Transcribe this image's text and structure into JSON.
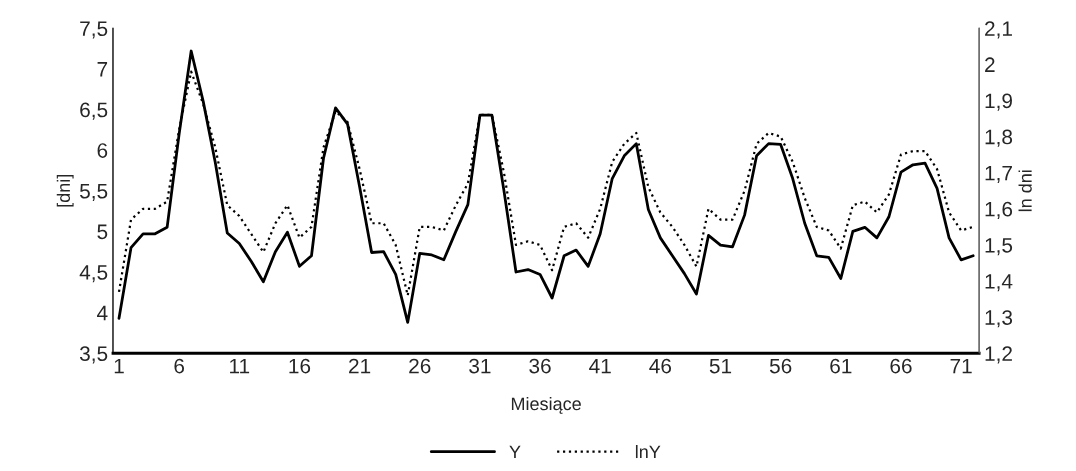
{
  "chart_data": {
    "type": "line",
    "xlabel": "Miesiące",
    "ylabel": "[dni]",
    "y2label": "ln dni",
    "x": [
      1,
      2,
      3,
      4,
      5,
      6,
      7,
      8,
      9,
      10,
      11,
      12,
      13,
      14,
      15,
      16,
      17,
      18,
      19,
      20,
      21,
      22,
      23,
      24,
      25,
      26,
      27,
      28,
      29,
      30,
      31,
      32,
      33,
      34,
      35,
      36,
      37,
      38,
      39,
      40,
      41,
      42,
      43,
      44,
      45,
      46,
      47,
      48,
      49,
      50,
      51,
      52,
      53,
      54,
      55,
      56,
      57,
      58,
      59,
      60,
      61,
      62,
      63,
      64,
      65,
      66,
      67,
      68,
      69,
      70,
      71,
      72
    ],
    "xlim": [
      0.5,
      72.5
    ],
    "xticks": [
      1,
      6,
      11,
      16,
      21,
      26,
      31,
      36,
      41,
      46,
      51,
      56,
      61,
      66,
      71
    ],
    "ylim": [
      3.5,
      7.5
    ],
    "yticks": [
      {
        "value": 3.5,
        "label": "3,5"
      },
      4,
      {
        "value": 4.5,
        "label": "4,5"
      },
      5,
      {
        "value": 5.5,
        "label": "5,5"
      },
      6,
      {
        "value": 6.5,
        "label": "6,5"
      },
      7,
      {
        "value": 7.5,
        "label": "7,5"
      }
    ],
    "y2lim": [
      1.2,
      2.1
    ],
    "y2ticks": [
      {
        "value": 1.2,
        "label": "1,2"
      },
      {
        "value": 1.3,
        "label": "1,3"
      },
      {
        "value": 1.4,
        "label": "1,4"
      },
      {
        "value": 1.5,
        "label": "1,5"
      },
      {
        "value": 1.6,
        "label": "1,6"
      },
      {
        "value": 1.7,
        "label": "1,7"
      },
      {
        "value": 1.8,
        "label": "1,8"
      },
      {
        "value": 1.9,
        "label": "1,9"
      },
      2,
      {
        "value": 2.1,
        "label": "2,1"
      }
    ],
    "grid": false,
    "legend": "bottom",
    "marker": "none",
    "series": [
      {
        "name": "Y",
        "color": "#000000",
        "line_style": "solid",
        "values": [
          3.93,
          4.8,
          4.97,
          4.97,
          5.05,
          6.2,
          7.22,
          6.6,
          5.85,
          4.98,
          4.85,
          4.63,
          4.38,
          4.75,
          4.99,
          4.57,
          4.7,
          5.9,
          6.52,
          6.32,
          5.55,
          4.74,
          4.75,
          4.47,
          3.88,
          4.73,
          4.71,
          4.65,
          5.0,
          5.33,
          6.43,
          6.43,
          5.5,
          4.5,
          4.53,
          4.47,
          4.18,
          4.7,
          4.77,
          4.57,
          4.97,
          5.65,
          5.93,
          6.08,
          5.27,
          4.92,
          4.7,
          4.48,
          4.23,
          4.95,
          4.83,
          4.81,
          5.2,
          5.93,
          6.08,
          6.07,
          5.65,
          5.1,
          4.7,
          4.68,
          4.42,
          5.0,
          5.05,
          4.92,
          5.18,
          5.73,
          5.82,
          5.84,
          5.53,
          4.92,
          4.65,
          4.7
        ]
      },
      {
        "name": "lnY",
        "color": "#000000",
        "line_style": "dotted",
        "axis": "y2",
        "values": [
          1.37,
          1.57,
          1.6,
          1.6,
          1.62,
          1.82,
          1.98,
          1.89,
          1.77,
          1.61,
          1.58,
          1.53,
          1.48,
          1.56,
          1.61,
          1.52,
          1.55,
          1.77,
          1.87,
          1.84,
          1.71,
          1.56,
          1.56,
          1.5,
          1.36,
          1.55,
          1.55,
          1.54,
          1.61,
          1.67,
          1.86,
          1.86,
          1.7,
          1.5,
          1.51,
          1.5,
          1.43,
          1.55,
          1.56,
          1.52,
          1.6,
          1.73,
          1.78,
          1.81,
          1.66,
          1.59,
          1.55,
          1.5,
          1.44,
          1.6,
          1.57,
          1.57,
          1.65,
          1.78,
          1.81,
          1.8,
          1.73,
          1.63,
          1.55,
          1.54,
          1.49,
          1.61,
          1.62,
          1.59,
          1.64,
          1.75,
          1.76,
          1.76,
          1.71,
          1.59,
          1.54,
          1.55
        ]
      }
    ]
  }
}
